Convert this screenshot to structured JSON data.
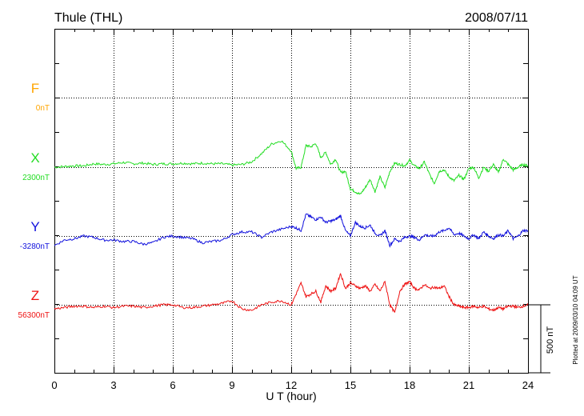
{
  "header": {
    "station": "Thule (THL)",
    "date": "2008/07/11"
  },
  "footer": {
    "plotted_note": "Plotted at 2009/03/10 04:09 UT"
  },
  "chart_data": {
    "type": "line",
    "xlabel": "U T (hour)",
    "x_ticks": [
      "0",
      "3",
      "6",
      "9",
      "12",
      "15",
      "18",
      "21",
      "24"
    ],
    "xlim": [
      0,
      24
    ],
    "grid": true,
    "scale_bar_label": "500 nT",
    "series": [
      {
        "name": "F",
        "baseline": "0nT",
        "color": "#ffa500",
        "x": [],
        "values": []
      },
      {
        "name": "X",
        "baseline": "2300nT",
        "color": "#22dd22",
        "x": [
          0,
          0.5,
          1,
          1.5,
          2,
          2.5,
          3,
          3.5,
          4,
          4.5,
          5,
          5.5,
          6,
          6.5,
          7,
          7.5,
          8,
          8.5,
          9,
          9.5,
          10,
          10.5,
          11,
          11.5,
          12,
          12.25,
          12.5,
          12.75,
          13,
          13.25,
          13.5,
          13.75,
          14,
          14.25,
          14.5,
          14.75,
          15,
          15.25,
          15.5,
          15.75,
          16,
          16.25,
          16.5,
          16.75,
          17,
          17.25,
          17.5,
          17.75,
          18,
          18.25,
          18.5,
          18.75,
          19,
          19.25,
          19.5,
          19.75,
          20,
          20.25,
          20.5,
          20.75,
          21,
          21.25,
          21.5,
          21.75,
          22,
          22.25,
          22.5,
          22.75,
          23,
          23.25,
          23.5,
          23.75,
          24
        ],
        "values": [
          0,
          5,
          10,
          10,
          25,
          20,
          25,
          35,
          25,
          30,
          20,
          25,
          25,
          30,
          25,
          30,
          25,
          25,
          15,
          20,
          40,
          100,
          170,
          195,
          120,
          -10,
          0,
          160,
          150,
          175,
          70,
          110,
          20,
          60,
          -40,
          -30,
          -160,
          -180,
          -200,
          -150,
          -90,
          -180,
          -70,
          -150,
          -30,
          30,
          20,
          10,
          50,
          10,
          -10,
          40,
          -50,
          -120,
          -30,
          -20,
          -70,
          -100,
          -60,
          -90,
          -10,
          0,
          -80,
          0,
          -30,
          20,
          -40,
          60,
          20,
          -20,
          0,
          20,
          10
        ]
      },
      {
        "name": "Y",
        "baseline": "-3280nT",
        "color": "#1111dd",
        "x": [
          0,
          0.5,
          1,
          1.5,
          2,
          2.5,
          3,
          3.5,
          4,
          4.5,
          5,
          5.5,
          6,
          6.5,
          7,
          7.5,
          8,
          8.5,
          9,
          9.5,
          10,
          10.5,
          11,
          11.5,
          12,
          12.25,
          12.5,
          12.75,
          13,
          13.25,
          13.5,
          13.75,
          14,
          14.25,
          14.5,
          14.75,
          15,
          15.25,
          15.5,
          15.75,
          16,
          16.25,
          16.5,
          16.75,
          17,
          17.25,
          17.5,
          17.75,
          18,
          18.25,
          18.5,
          18.75,
          19,
          19.25,
          19.5,
          19.75,
          20,
          20.25,
          20.5,
          20.75,
          21,
          21.25,
          21.5,
          21.75,
          22,
          22.25,
          22.5,
          22.75,
          23,
          23.25,
          23.5,
          23.75,
          24
        ],
        "values": [
          -70,
          -30,
          -20,
          0,
          -10,
          -30,
          -30,
          -40,
          -40,
          -60,
          -50,
          -10,
          0,
          -10,
          -20,
          -50,
          -40,
          -30,
          10,
          30,
          30,
          -10,
          30,
          50,
          70,
          60,
          40,
          160,
          140,
          120,
          140,
          100,
          110,
          120,
          150,
          40,
          0,
          100,
          70,
          60,
          80,
          20,
          0,
          40,
          -70,
          -20,
          -40,
          -10,
          0,
          -10,
          -30,
          10,
          0,
          0,
          30,
          40,
          60,
          10,
          20,
          0,
          -20,
          10,
          -20,
          30,
          0,
          -20,
          10,
          0,
          40,
          -20,
          0,
          40,
          40
        ]
      },
      {
        "name": "Z",
        "baseline": "56300nT",
        "color": "#ee1111",
        "x": [
          0,
          0.5,
          1,
          1.5,
          2,
          2.5,
          3,
          3.5,
          4,
          4.5,
          5,
          5.5,
          6,
          6.5,
          7,
          7.5,
          8,
          8.5,
          9,
          9.5,
          10,
          10.5,
          11,
          11.5,
          12,
          12.25,
          12.5,
          12.75,
          13,
          13.25,
          13.5,
          13.75,
          14,
          14.25,
          14.5,
          14.75,
          15,
          15.25,
          15.5,
          15.75,
          16,
          16.25,
          16.5,
          16.75,
          17,
          17.25,
          17.5,
          17.75,
          18,
          18.25,
          18.5,
          18.75,
          19,
          19.25,
          19.5,
          19.75,
          20,
          20.25,
          20.5,
          20.75,
          21,
          21.25,
          21.5,
          21.75,
          22,
          22.25,
          22.5,
          22.75,
          23,
          23.25,
          23.5,
          23.75,
          24
        ],
        "values": [
          -30,
          -20,
          -10,
          -10,
          -20,
          -10,
          -20,
          -10,
          -10,
          -20,
          -10,
          0,
          0,
          -20,
          -20,
          -10,
          0,
          10,
          30,
          -30,
          -40,
          0,
          20,
          30,
          0,
          80,
          160,
          60,
          80,
          100,
          20,
          140,
          100,
          120,
          230,
          120,
          160,
          140,
          120,
          140,
          100,
          150,
          100,
          170,
          0,
          -60,
          100,
          150,
          170,
          120,
          110,
          150,
          120,
          130,
          120,
          140,
          60,
          0,
          -10,
          -20,
          -20,
          -10,
          -20,
          -10,
          -30,
          -40,
          -20,
          -30,
          -10,
          -10,
          -20,
          -10,
          0
        ]
      }
    ]
  }
}
